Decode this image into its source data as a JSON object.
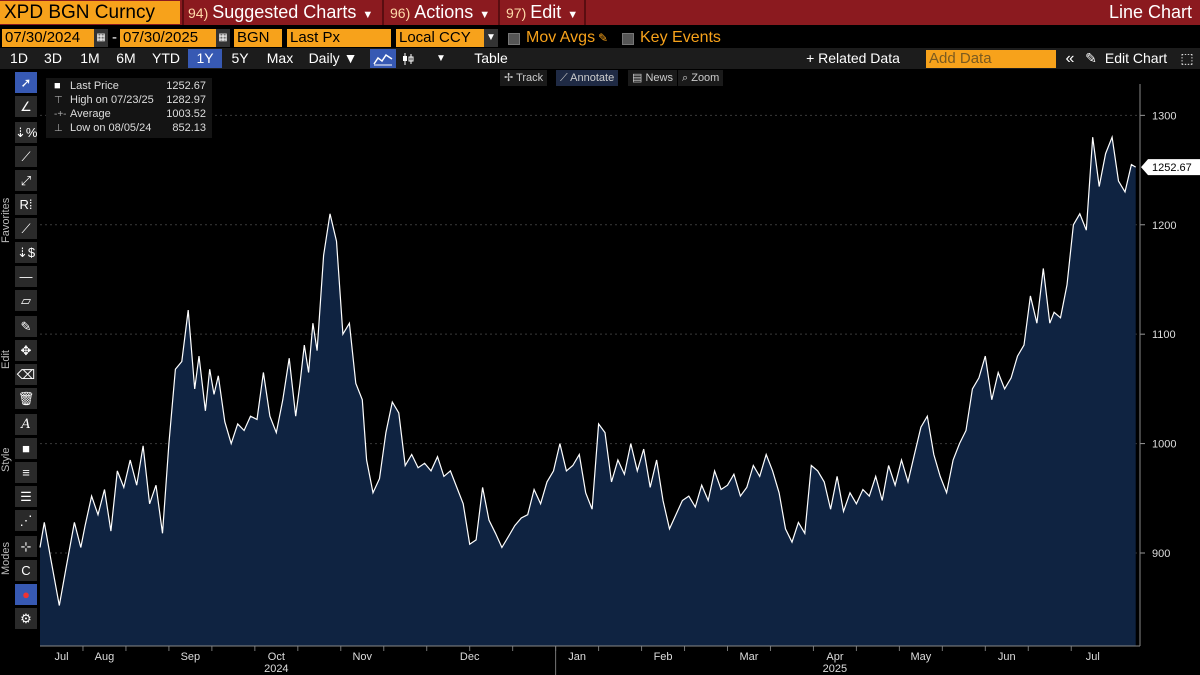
{
  "header": {
    "ticker": "XPD BGN Curncy",
    "menus": [
      {
        "num": "94)",
        "label": "Suggested Charts"
      },
      {
        "num": "96)",
        "label": "Actions"
      },
      {
        "num": "97)",
        "label": "Edit"
      }
    ],
    "chart_type": "Line Chart"
  },
  "controls": {
    "start_date": "07/30/2024",
    "date_sep": "-",
    "end_date": "07/30/2025",
    "source": "BGN",
    "field": "Last Px",
    "currency": "Local CCY",
    "mov_avgs": "Mov Avgs",
    "key_events": "Key Events",
    "ranges": [
      "1D",
      "3D",
      "1M",
      "6M",
      "YTD",
      "1Y",
      "5Y",
      "Max"
    ],
    "active_range": "1Y",
    "periodicity": "Daily ▼",
    "table": "Table",
    "related_data": "+ Related Data",
    "add_data_placeholder": "Add Data",
    "edit_chart": "Edit Chart",
    "collapse": "«"
  },
  "side_labels": {
    "favorites": "Favorites",
    "edit": "Edit",
    "style": "Style",
    "modes": "Modes"
  },
  "chart_toolbar": {
    "track": "Track",
    "annotate": "Annotate",
    "news": "News",
    "zoom": "Zoom"
  },
  "legend": {
    "last_label": "Last Price",
    "last_value": "1252.67",
    "high_label": "High on 07/23/25",
    "high_value": "1282.97",
    "avg_label": "Average",
    "avg_value": "1003.52",
    "low_label": "Low on 08/05/24",
    "low_value": "852.13"
  },
  "colors": {
    "accent": "#f7a21b",
    "titlebar": "#8b1a1f",
    "fill": "#0f2341",
    "line": "#ffffff"
  },
  "chart_data": {
    "type": "area",
    "title": "XPD BGN Curncy",
    "ylabel": "",
    "ylim": [
      815,
      1325
    ],
    "yticks": [
      900,
      1000,
      1100,
      1200,
      1300
    ],
    "last_value_label": "1252.67",
    "month_labels": [
      "Jul",
      "Aug",
      "Sep",
      "Oct",
      "Nov",
      "Dec",
      "Jan",
      "Feb",
      "Mar",
      "Apr",
      "May",
      "Jun",
      "Jul"
    ],
    "month_positions": [
      0.5,
      1.5,
      3.5,
      5.5,
      7.5,
      10,
      12.5,
      14.5,
      16.5,
      18.5,
      20.5,
      22.5,
      24.5
    ],
    "year_labels": [
      {
        "label": "2024",
        "pos": 5.5
      },
      {
        "label": "2025",
        "pos": 18.5
      }
    ],
    "x_range": [
      0,
      25.6
    ],
    "series": [
      {
        "name": "Last Price",
        "x": [
          0,
          0.1,
          0.25,
          0.45,
          0.6,
          0.8,
          0.95,
          1.05,
          1.2,
          1.35,
          1.5,
          1.65,
          1.8,
          1.95,
          2.1,
          2.25,
          2.4,
          2.55,
          2.7,
          2.85,
          3.0,
          3.15,
          3.3,
          3.45,
          3.6,
          3.7,
          3.85,
          3.95,
          4.05,
          4.15,
          4.3,
          4.45,
          4.6,
          4.75,
          4.9,
          5.05,
          5.2,
          5.35,
          5.5,
          5.65,
          5.8,
          5.95,
          6.05,
          6.15,
          6.25,
          6.35,
          6.45,
          6.6,
          6.75,
          6.9,
          7.05,
          7.2,
          7.35,
          7.5,
          7.6,
          7.75,
          7.9,
          8.05,
          8.2,
          8.35,
          8.5,
          8.65,
          8.8,
          8.95,
          9.1,
          9.25,
          9.4,
          9.55,
          9.7,
          9.85,
          10.0,
          10.15,
          10.3,
          10.45,
          10.6,
          10.75,
          10.9,
          11.05,
          11.2,
          11.35,
          11.5,
          11.65,
          11.8,
          11.95,
          12.1,
          12.25,
          12.4,
          12.55,
          12.7,
          12.85,
          13.0,
          13.15,
          13.3,
          13.45,
          13.6,
          13.75,
          13.9,
          14.05,
          14.2,
          14.35,
          14.5,
          14.65,
          14.8,
          14.95,
          15.1,
          15.25,
          15.4,
          15.55,
          15.7,
          15.85,
          16.0,
          16.15,
          16.3,
          16.45,
          16.6,
          16.75,
          16.9,
          17.05,
          17.2,
          17.35,
          17.5,
          17.65,
          17.8,
          17.95,
          18.1,
          18.25,
          18.4,
          18.55,
          18.7,
          18.85,
          19.0,
          19.15,
          19.3,
          19.45,
          19.6,
          19.75,
          19.9,
          20.05,
          20.2,
          20.35,
          20.5,
          20.65,
          20.8,
          20.95,
          21.1,
          21.25,
          21.4,
          21.55,
          21.7,
          21.85,
          22.0,
          22.15,
          22.3,
          22.45,
          22.6,
          22.75,
          22.9,
          23.05,
          23.2,
          23.35,
          23.5,
          23.6,
          23.75,
          23.9,
          24.05,
          24.2,
          24.35,
          24.5,
          24.65,
          24.8,
          24.95,
          25.1,
          25.25,
          25.4,
          25.5
        ],
        "values": [
          905,
          928,
          895,
          852,
          885,
          928,
          905,
          925,
          952,
          935,
          958,
          920,
          975,
          960,
          985,
          962,
          998,
          945,
          962,
          918,
          1000,
          1068,
          1075,
          1122,
          1050,
          1080,
          1030,
          1068,
          1045,
          1062,
          1020,
          1000,
          1018,
          1012,
          1025,
          1022,
          1065,
          1025,
          1010,
          1040,
          1078,
          1025,
          1055,
          1090,
          1065,
          1110,
          1085,
          1172,
          1210,
          1185,
          1100,
          1110,
          1055,
          1040,
          985,
          955,
          968,
          1010,
          1038,
          1028,
          980,
          990,
          978,
          982,
          975,
          988,
          970,
          975,
          960,
          945,
          908,
          912,
          960,
          930,
          918,
          905,
          915,
          925,
          932,
          935,
          958,
          945,
          965,
          975,
          1000,
          975,
          980,
          990,
          955,
          940,
          1018,
          1010,
          965,
          985,
          972,
          1000,
          975,
          995,
          960,
          985,
          948,
          922,
          935,
          948,
          952,
          942,
          962,
          948,
          975,
          958,
          962,
          972,
          952,
          960,
          980,
          970,
          990,
          975,
          955,
          922,
          910,
          928,
          918,
          980,
          975,
          965,
          940,
          970,
          938,
          955,
          945,
          958,
          952,
          970,
          948,
          980,
          962,
          985,
          965,
          990,
          1015,
          1025,
          990,
          970,
          955,
          985,
          1000,
          1012,
          1050,
          1060,
          1080,
          1040,
          1065,
          1050,
          1060,
          1080,
          1090,
          1135,
          1110,
          1160,
          1110,
          1120,
          1115,
          1145,
          1200,
          1210,
          1195,
          1280,
          1235,
          1265,
          1280,
          1240,
          1230,
          1255,
          1252.67
        ]
      }
    ]
  }
}
